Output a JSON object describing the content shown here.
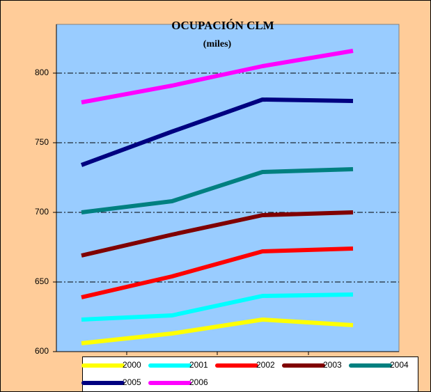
{
  "chart_data": {
    "type": "line",
    "title": "OCUPACIÓN CLM",
    "subtitle": "(miles)",
    "series": [
      {
        "name": "2000",
        "color": "#ffff00",
        "values": [
          606,
          613,
          623,
          619
        ]
      },
      {
        "name": "2001",
        "color": "#00ffff",
        "values": [
          623,
          626,
          640,
          641
        ]
      },
      {
        "name": "2002",
        "color": "#ff0000",
        "values": [
          639,
          654,
          672,
          674
        ]
      },
      {
        "name": "2003",
        "color": "#800000",
        "values": [
          669,
          684,
          698,
          700
        ]
      },
      {
        "name": "2004",
        "color": "#008080",
        "values": [
          700,
          708,
          729,
          731
        ]
      },
      {
        "name": "2005",
        "color": "#000080",
        "values": [
          734,
          758,
          781,
          780
        ]
      },
      {
        "name": "2006",
        "color": "#ff00ff",
        "values": [
          779,
          791,
          805,
          816
        ]
      }
    ],
    "ylim": [
      600,
      835
    ],
    "yticks": [
      600,
      650,
      700,
      750,
      800
    ],
    "grid": true,
    "legend": "bottom"
  }
}
